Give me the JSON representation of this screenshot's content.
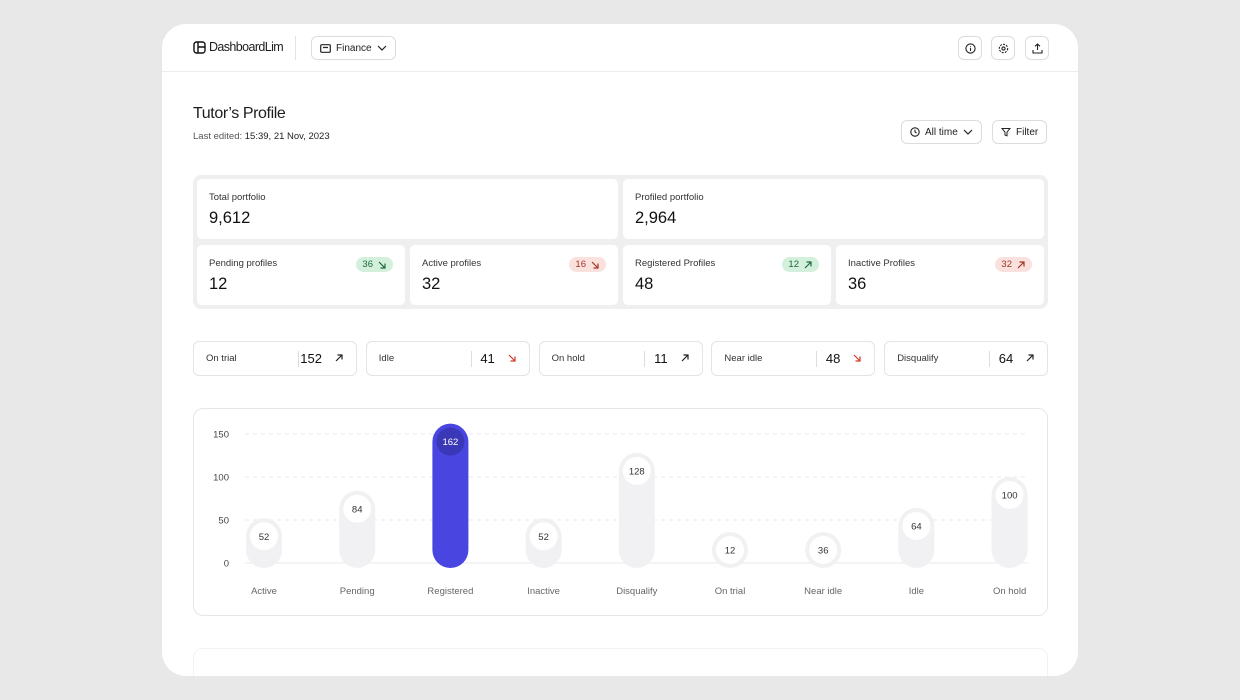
{
  "header": {
    "logo": "DashboardLim",
    "workspace": "Finance"
  },
  "page": {
    "title": "Tutor’s Profile",
    "last_edited_label": "Last edited:",
    "last_edited": "15:39, 21 Nov, 2023",
    "period": "All time",
    "filter": "Filter"
  },
  "summary": [
    {
      "label": "Total portfolio",
      "value": "9,612"
    },
    {
      "label": "Profiled portfolio",
      "value": "2,964"
    }
  ],
  "profiles": [
    {
      "label": "Pending profiles",
      "value": 12,
      "change": 36,
      "trend": "down",
      "tone": "positive"
    },
    {
      "label": "Active profiles",
      "value": 32,
      "change": 16,
      "trend": "down",
      "tone": "negative"
    },
    {
      "label": "Registered Profiles",
      "value": 48,
      "change": 12,
      "trend": "up",
      "tone": "positive"
    },
    {
      "label": "Inactive Profiles",
      "value": 36,
      "change": 32,
      "trend": "up",
      "tone": "negative"
    }
  ],
  "statuses": [
    {
      "label": "On trial",
      "value": 152,
      "trend": "up"
    },
    {
      "label": "Idle",
      "value": 41,
      "trend": "down"
    },
    {
      "label": "On hold",
      "value": 11,
      "trend": "up"
    },
    {
      "label": "Near idle",
      "value": 48,
      "trend": "down"
    },
    {
      "label": "Disqualify",
      "value": 64,
      "trend": "up"
    }
  ],
  "chart_data": {
    "type": "bar",
    "categories": [
      "Active",
      "Pending",
      "Registered",
      "Inactive",
      "Disqualify",
      "On trial",
      "Near idle",
      "Idle",
      "On hold"
    ],
    "values": [
      52,
      84,
      162,
      52,
      128,
      12,
      36,
      64,
      100
    ],
    "colors": [
      "#f1f1f3",
      "#f1f1f3",
      "#4845e0",
      "#f1f1f3",
      "#f1f1f3",
      "#f1f1f3",
      "#f1f1f3",
      "#f1f1f3",
      "#f1f1f3"
    ],
    "ylim": [
      0,
      150
    ],
    "yticks": [
      0,
      50,
      100,
      150
    ],
    "grid": true
  }
}
